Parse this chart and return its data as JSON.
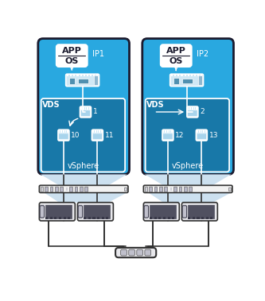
{
  "bg_color": "#ffffff",
  "host_bg": "#29a8e0",
  "host_border": "#1a1a2e",
  "vds_bg": "#1878a8",
  "vds_border": "#ffffff",
  "port_fill": "#29a8e0",
  "port_border": "#ffffff",
  "port_inner": "#ffffff",
  "vm_box_bg": "#ffffff",
  "vm_box_border": "#ffffff",
  "switch_border": "#303030",
  "switch_bg": "#f0f0f0",
  "cable_color": "#303030",
  "fan_color": "#cce0ef",
  "host1_label": "IP1",
  "host2_label": "IP2",
  "app_label": "APP",
  "os_label": "OS",
  "vds_label": "VDS",
  "vsphere_label": "vSphere",
  "port1_label": "1",
  "port2_label": "2",
  "port10_label": "10",
  "port11_label": "11",
  "port12_label": "12",
  "port13_label": "13",
  "lbl_color": "#ffffff",
  "dark_border": "#1a1a2e"
}
